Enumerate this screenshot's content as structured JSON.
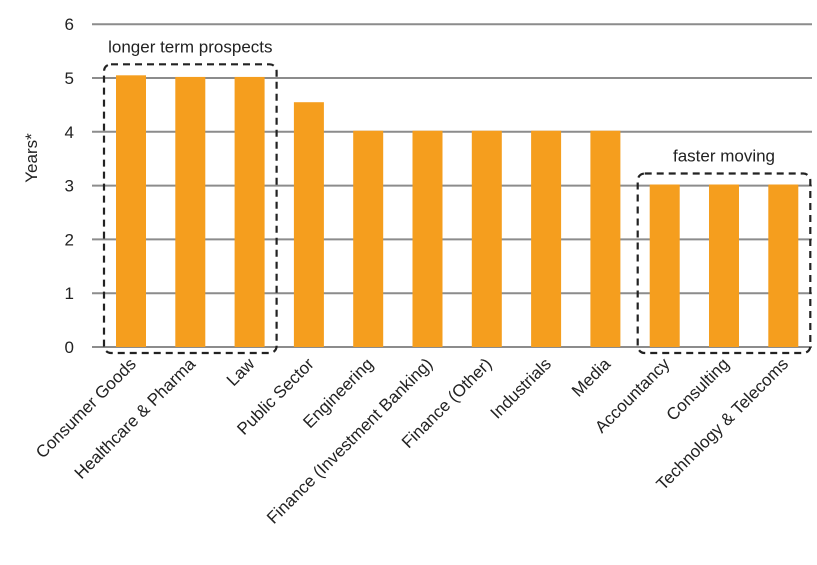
{
  "chart_data": {
    "type": "bar",
    "title": "",
    "xlabel": "",
    "ylabel": "Years*",
    "ylim": [
      0,
      6
    ],
    "yticks": [
      0,
      1,
      2,
      3,
      4,
      5,
      6
    ],
    "grid": true,
    "categories": [
      "Consumer Goods",
      "Healthcare & Pharma",
      "Law",
      "Public Sector",
      "Engineering",
      "Finance (Investment Banking)",
      "Finance (Other)",
      "Industrials",
      "Media",
      "Accountancy",
      "Consulting",
      "Technology & Telecoms"
    ],
    "values": [
      5.05,
      5.02,
      5.02,
      4.55,
      4.02,
      4.02,
      4.02,
      4.02,
      4.02,
      3.02,
      3.02,
      3.02
    ],
    "bar_color": "#f59e1e",
    "annotations": [
      {
        "label": "longer term prospects",
        "from_category": 0,
        "to_category": 2
      },
      {
        "label": "faster moving",
        "from_category": 9,
        "to_category": 11
      }
    ]
  }
}
